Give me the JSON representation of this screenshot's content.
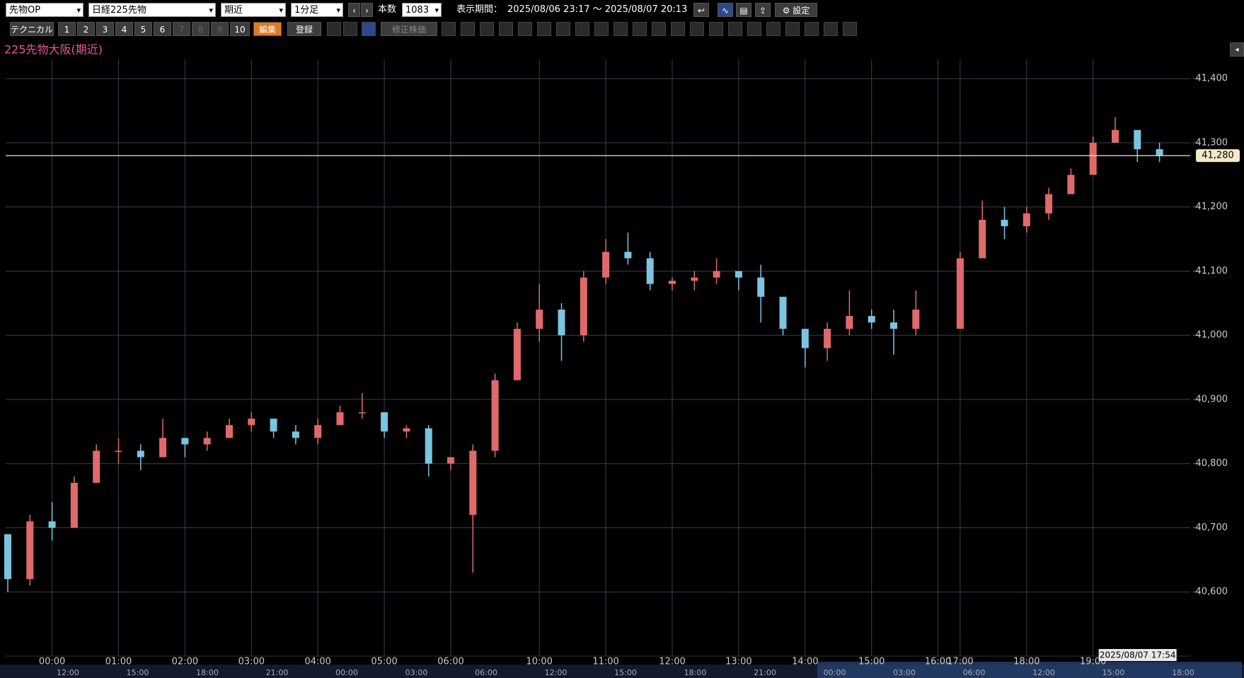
{
  "toolbar": {
    "market": "先物OP",
    "product": "日経225先物",
    "contract": "期近",
    "interval": "1分足",
    "bars_label": "本数",
    "bars": "1083",
    "period_label": "表示期間：",
    "period": "2025/08/06 23:17 ～ 2025/08/07 20:13",
    "settings": "設定",
    "technical": "テクニカル",
    "presets": [
      "1",
      "2",
      "3",
      "4",
      "5",
      "6",
      "7",
      "8",
      "9",
      "10"
    ],
    "edit": "編集",
    "register": "登録",
    "adjusted": "修正株価"
  },
  "chart_data": {
    "type": "candlestick",
    "title": "225先物大阪(期近)",
    "categories": [
      null,
      null,
      "00:00",
      null,
      null,
      "01:00",
      null,
      null,
      "02:00",
      null,
      null,
      "03:00",
      null,
      null,
      "04:00",
      null,
      null,
      "05:00",
      null,
      null,
      "06:00",
      null,
      null,
      null,
      "10:00",
      null,
      null,
      "11:00",
      null,
      null,
      "12:00",
      null,
      null,
      "13:00",
      null,
      null,
      "14:00",
      null,
      null,
      "15:00",
      null,
      null,
      "16:00",
      "17:00",
      null,
      null,
      "18:00",
      null,
      null,
      "19:00",
      null,
      null,
      null
    ],
    "open": [
      40690,
      40620,
      40710,
      40700,
      40770,
      40820,
      40820,
      40810,
      40840,
      40830,
      40840,
      40860,
      40870,
      40850,
      40840,
      40860,
      40880,
      40880,
      40850,
      40855,
      40800,
      40720,
      40820,
      40930,
      41010,
      41040,
      41000,
      41090,
      41130,
      41120,
      41080,
      41085,
      41090,
      41100,
      41090,
      41060,
      41010,
      40980,
      41010,
      41030,
      41020,
      41010,
      null,
      41010,
      41120,
      41180,
      41170,
      41190,
      41220,
      41250,
      41300,
      41320,
      41290
    ],
    "high": [
      40690,
      40720,
      40740,
      40780,
      40830,
      40840,
      40830,
      40870,
      40840,
      40850,
      40870,
      40880,
      40870,
      40860,
      40870,
      40890,
      40910,
      40880,
      40860,
      40860,
      40810,
      40830,
      40940,
      41020,
      41080,
      41050,
      41100,
      41150,
      41160,
      41130,
      41090,
      41100,
      41120,
      41100,
      41110,
      41060,
      41010,
      41020,
      41070,
      41040,
      41040,
      41070,
      null,
      41130,
      41210,
      41200,
      41200,
      41230,
      41260,
      41310,
      41340,
      41320,
      41300
    ],
    "low": [
      40600,
      40610,
      40680,
      40700,
      40770,
      40800,
      40790,
      40810,
      40810,
      40820,
      40840,
      40850,
      40840,
      40830,
      40830,
      40860,
      40870,
      40840,
      40840,
      40780,
      40790,
      40630,
      40810,
      40930,
      40990,
      40960,
      40990,
      41080,
      41110,
      41070,
      41070,
      41070,
      41080,
      41070,
      41020,
      41000,
      40950,
      40960,
      41000,
      41010,
      40970,
      41000,
      null,
      41010,
      41120,
      41150,
      41160,
      41180,
      41220,
      41250,
      41300,
      41270,
      41270
    ],
    "close": [
      40620,
      40710,
      40700,
      40770,
      40820,
      40820,
      40810,
      40840,
      40830,
      40840,
      40860,
      40870,
      40850,
      40840,
      40860,
      40880,
      40880,
      40850,
      40855,
      40800,
      40810,
      40820,
      40930,
      41010,
      41040,
      41000,
      41090,
      41130,
      41120,
      41080,
      41085,
      41090,
      41100,
      41090,
      41060,
      41010,
      40980,
      41010,
      41030,
      41020,
      41010,
      41040,
      null,
      41120,
      41180,
      41170,
      41190,
      41220,
      41250,
      41300,
      41320,
      41290,
      41280
    ],
    "up_color": "#e06a6a",
    "down_color": "#7cc4e0",
    "ylim": [
      40500,
      41430
    ],
    "yticks": [
      {
        "value": 40600,
        "label": "40,600"
      },
      {
        "value": 40700,
        "label": "40,700"
      },
      {
        "value": 40800,
        "label": "40,800"
      },
      {
        "value": 40900,
        "label": "40,900"
      },
      {
        "value": 41000,
        "label": "41,000"
      },
      {
        "value": 41100,
        "label": "41,100"
      },
      {
        "value": 41200,
        "label": "41,200"
      },
      {
        "value": 41300,
        "label": "41,300"
      },
      {
        "value": 41400,
        "label": "41,400"
      }
    ],
    "grid": true,
    "last_price": {
      "value": 41280,
      "label": "41,280"
    },
    "cursor_time": "2025/08/07 17:54",
    "navigator_labels": [
      "12:00",
      "15:00",
      "18:00",
      "21:00",
      "00:00",
      "03:00",
      "06:00",
      "12:00",
      "15:00",
      "18:00",
      "21:00",
      "00:00",
      "03:00",
      "06:00",
      "12:00",
      "15:00",
      "18:00"
    ]
  }
}
